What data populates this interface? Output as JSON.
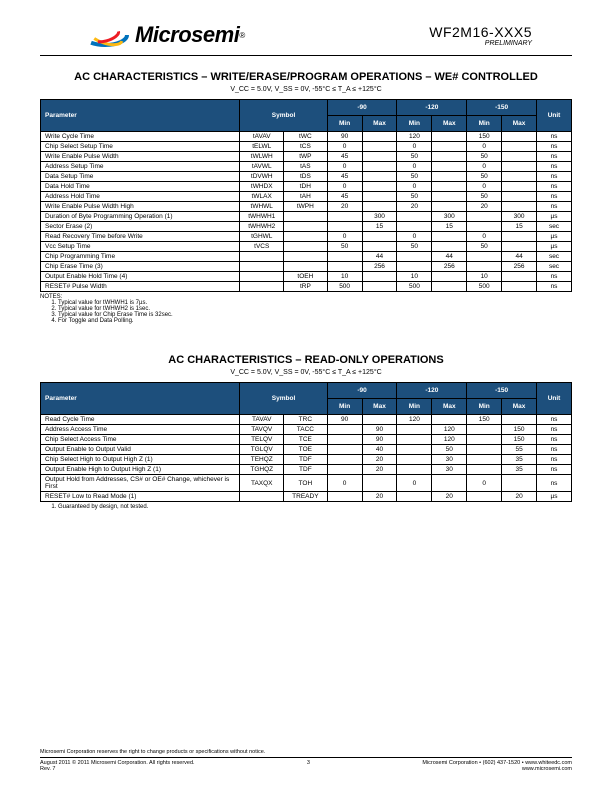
{
  "header": {
    "company": "Microsemi",
    "partNumber": "WF2M16-XXX5",
    "preliminary": "PRELIMINARY"
  },
  "colors": {
    "tableHeaderBg": "#1d4f7c",
    "tableHeaderFg": "#ffffff",
    "logoBlue": "#0072bc",
    "logoYellow": "#fdb913",
    "logoRed": "#ed1c24"
  },
  "table1": {
    "title": "AC CHARACTERISTICS – WRITE/ERASE/PROGRAM OPERATIONS – WE# CONTROLLED",
    "conditions": "V_CC = 5.0V, V_SS = 0V, -55°C ≤ T_A ≤ +125°C",
    "speedCols": [
      "-90",
      "-120",
      "-150"
    ],
    "headers": [
      "Parameter",
      "Symbol",
      "Min",
      "Max",
      "Min",
      "Max",
      "Min",
      "Max",
      "Unit"
    ],
    "rows": [
      {
        "param": "Write Cycle Time",
        "sym1": "tAVAV",
        "sym2": "tWC",
        "min90": "90",
        "max90": "",
        "min120": "120",
        "max120": "",
        "min150": "150",
        "max150": "",
        "unit": "ns"
      },
      {
        "param": "Chip Select Setup Time",
        "sym1": "tELWL",
        "sym2": "tCS",
        "min90": "0",
        "max90": "",
        "min120": "0",
        "max120": "",
        "min150": "0",
        "max150": "",
        "unit": "ns"
      },
      {
        "param": "Write Enable Pulse Width",
        "sym1": "tWLWH",
        "sym2": "tWP",
        "min90": "45",
        "max90": "",
        "min120": "50",
        "max120": "",
        "min150": "50",
        "max150": "",
        "unit": "ns"
      },
      {
        "param": "Address Setup Time",
        "sym1": "tAVWL",
        "sym2": "tAS",
        "min90": "0",
        "max90": "",
        "min120": "0",
        "max120": "",
        "min150": "0",
        "max150": "",
        "unit": "ns"
      },
      {
        "param": "Data Setup Time",
        "sym1": "tDVWH",
        "sym2": "tDS",
        "min90": "45",
        "max90": "",
        "min120": "50",
        "max120": "",
        "min150": "50",
        "max150": "",
        "unit": "ns"
      },
      {
        "param": "Data Hold Time",
        "sym1": "tWHDX",
        "sym2": "tDH",
        "min90": "0",
        "max90": "",
        "min120": "0",
        "max120": "",
        "min150": "0",
        "max150": "",
        "unit": "ns"
      },
      {
        "param": "Address Hold Time",
        "sym1": "tWLAX",
        "sym2": "tAH",
        "min90": "45",
        "max90": "",
        "min120": "50",
        "max120": "",
        "min150": "50",
        "max150": "",
        "unit": "ns"
      },
      {
        "param": "Write Enable Pulse Width High",
        "sym1": "tWHWL",
        "sym2": "tWPH",
        "min90": "20",
        "max90": "",
        "min120": "20",
        "max120": "",
        "min150": "20",
        "max150": "",
        "unit": "ns"
      },
      {
        "param": "Duration of Byte Programming Operation (1)",
        "sym1": "tWHWH1",
        "sym2": "",
        "min90": "",
        "max90": "300",
        "min120": "",
        "max120": "300",
        "min150": "",
        "max150": "300",
        "unit": "µs"
      },
      {
        "param": "Sector Erase (2)",
        "sym1": "tWHWH2",
        "sym2": "",
        "min90": "",
        "max90": "15",
        "min120": "",
        "max120": "15",
        "min150": "",
        "max150": "15",
        "unit": "sec"
      },
      {
        "param": "Read Recovery Time before Write",
        "sym1": "tGHWL",
        "sym2": "",
        "min90": "0",
        "max90": "",
        "min120": "0",
        "max120": "",
        "min150": "0",
        "max150": "",
        "unit": "µs"
      },
      {
        "param": "Vcc Setup Time",
        "sym1": "tVCS",
        "sym2": "",
        "min90": "50",
        "max90": "",
        "min120": "50",
        "max120": "",
        "min150": "50",
        "max150": "",
        "unit": "µs"
      },
      {
        "param": "Chip Programming Time",
        "sym1": "",
        "sym2": "",
        "min90": "",
        "max90": "44",
        "min120": "",
        "max120": "44",
        "min150": "",
        "max150": "44",
        "unit": "sec"
      },
      {
        "param": "Chip Erase Time (3)",
        "sym1": "",
        "sym2": "",
        "min90": "",
        "max90": "256",
        "min120": "",
        "max120": "256",
        "min150": "",
        "max150": "256",
        "unit": "sec"
      },
      {
        "param": "Output Enable Hold Time (4)",
        "sym1": "",
        "sym2": "tOEH",
        "min90": "10",
        "max90": "",
        "min120": "10",
        "max120": "",
        "min150": "10",
        "max150": "",
        "unit": "ns"
      },
      {
        "param": "RESET# Pulse Width",
        "sym1": "",
        "sym2": "tRP",
        "min90": "500",
        "max90": "",
        "min120": "500",
        "max120": "",
        "min150": "500",
        "max150": "",
        "unit": "ns"
      }
    ],
    "notesTitle": "NOTES:",
    "notes": [
      "Typical value for tWHWH1 is 7µs.",
      "Typical value for tWHWH2 is 1sec.",
      "Typical value for Chip Erase Time is 32sec.",
      "For Toggle and Data Polling."
    ]
  },
  "table2": {
    "title": "AC CHARACTERISTICS – READ-ONLY OPERATIONS",
    "conditions": "V_CC = 5.0V, V_SS = 0V, -55°C ≤ T_A ≤ +125°C",
    "speedCols": [
      "-90",
      "-120",
      "-150"
    ],
    "headers": [
      "Parameter",
      "Symbol",
      "Min",
      "Max",
      "Min",
      "Max",
      "Min",
      "Max",
      "Unit"
    ],
    "rows": [
      {
        "param": "Read Cycle Time",
        "sym1": "TAVAV",
        "sym2": "TRC",
        "min90": "90",
        "max90": "",
        "min120": "120",
        "max120": "",
        "min150": "150",
        "max150": "",
        "unit": "ns"
      },
      {
        "param": "Address Access Time",
        "sym1": "TAVQV",
        "sym2": "TACC",
        "min90": "",
        "max90": "90",
        "min120": "",
        "max120": "120",
        "min150": "",
        "max150": "150",
        "unit": "ns"
      },
      {
        "param": "Chip Select Access Time",
        "sym1": "TELQV",
        "sym2": "TCE",
        "min90": "",
        "max90": "90",
        "min120": "",
        "max120": "120",
        "min150": "",
        "max150": "150",
        "unit": "ns"
      },
      {
        "param": "Output Enable to Output Valid",
        "sym1": "TGLQV",
        "sym2": "TOE",
        "min90": "",
        "max90": "40",
        "min120": "",
        "max120": "50",
        "min150": "",
        "max150": "55",
        "unit": "ns"
      },
      {
        "param": "Chip Select High to Output High Z (1)",
        "sym1": "TEHQZ",
        "sym2": "TDF",
        "min90": "",
        "max90": "20",
        "min120": "",
        "max120": "30",
        "min150": "",
        "max150": "35",
        "unit": "ns"
      },
      {
        "param": "Output Enable High to Output High Z (1)",
        "sym1": "TGHQZ",
        "sym2": "TDF",
        "min90": "",
        "max90": "20",
        "min120": "",
        "max120": "30",
        "min150": "",
        "max150": "35",
        "unit": "ns"
      },
      {
        "param": "Output Hold from Addresses, CS# or OE# Change, whichever is First",
        "sym1": "TAXQX",
        "sym2": "TOH",
        "min90": "0",
        "max90": "",
        "min120": "0",
        "max120": "",
        "min150": "0",
        "max150": "",
        "unit": "ns"
      },
      {
        "param": "RESET# Low to Read Mode (1)",
        "sym1": "",
        "sym2": "TREADY",
        "min90": "",
        "max90": "20",
        "min120": "",
        "max120": "20",
        "min150": "",
        "max150": "20",
        "unit": "µs"
      }
    ],
    "notes": [
      "Guaranteed by design, not tested."
    ]
  },
  "footer": {
    "disclaimer": "Microsemi Corporation reserves the right to change products or specifications without notice.",
    "leftLine1": "August 2011    © 2011 Microsemi Corporation. All rights reserved.",
    "leftLine2": "Rev. 7",
    "pageNum": "3",
    "right": "Microsemi Corporation • (602) 437-1520 • www.whiteedc.com",
    "right2": "www.microsemi.com"
  }
}
